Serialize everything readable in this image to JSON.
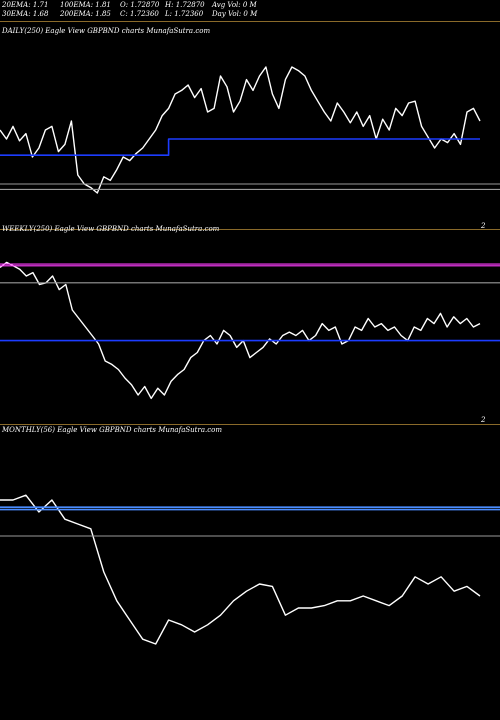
{
  "header": {
    "col1": [
      "20EMA: 1.71",
      "30EMA: 1.68"
    ],
    "col2": [
      "100EMA: 1.81",
      "200EMA: 1.85"
    ],
    "col3": [
      "O: 1.72870",
      "C: 1.72360"
    ],
    "col4": [
      "H: 1.72870",
      "L: 1.72360"
    ],
    "col5": [
      "Avg Vol: 0  M",
      "Day Vol: 0  M"
    ]
  },
  "panels": {
    "daily": {
      "label": "DAILY(250) Eagle  View  GBPBND charts MunafaSutra.com",
      "axis_mark": "2"
    },
    "weekly": {
      "label": "WEEKLY(250) Eagle  View  GBPBND charts MunafaSutra.com",
      "axis_mark": "2"
    },
    "monthly": {
      "label": "MONTHLY(56) Eagle  View  GBPBND charts MunafaSutra.com"
    }
  },
  "chart_data": [
    {
      "type": "line",
      "name": "daily",
      "ylim": [
        0,
        100
      ],
      "series": [
        {
          "role": "price",
          "color": "#ffffff",
          "values": [
            50,
            45,
            52,
            44,
            48,
            35,
            40,
            50,
            52,
            38,
            42,
            55,
            25,
            20,
            18,
            15,
            24,
            22,
            28,
            35,
            33,
            37,
            40,
            45,
            50,
            58,
            62,
            70,
            72,
            75,
            68,
            73,
            60,
            62,
            80,
            74,
            60,
            66,
            78,
            72,
            80,
            85,
            70,
            62,
            78,
            85,
            83,
            80,
            72,
            66,
            60,
            55,
            65,
            60,
            54,
            60,
            52,
            58,
            45,
            56,
            50,
            62,
            58,
            65,
            66,
            52,
            46,
            40,
            45,
            43,
            48,
            42,
            60,
            62,
            55
          ]
        },
        {
          "role": "average",
          "color": "#1c3cff",
          "values": [
            36,
            36,
            36,
            36,
            36,
            36,
            36,
            36,
            36,
            36,
            36,
            36,
            36,
            36,
            36,
            36,
            36,
            36,
            36,
            36,
            36,
            36,
            36,
            36,
            36,
            36,
            45,
            45,
            45,
            45,
            45,
            45,
            45,
            45,
            45,
            45,
            45,
            45,
            45,
            45,
            45,
            45,
            45,
            45,
            45,
            45,
            45,
            45,
            45,
            45,
            45,
            45,
            45,
            45,
            45,
            45,
            45,
            45,
            45,
            45,
            45,
            45,
            45,
            45,
            45,
            45,
            45,
            45,
            45,
            45,
            45,
            45,
            45,
            45,
            45
          ]
        },
        {
          "role": "level",
          "color": "#9a9a9a",
          "values": [
            20,
            20
          ]
        },
        {
          "role": "level",
          "color": "#9a9a9a",
          "values": [
            17,
            17
          ]
        }
      ]
    },
    {
      "type": "line",
      "name": "weekly",
      "ylim": [
        0,
        100
      ],
      "series": [
        {
          "role": "price",
          "color": "#ffffff",
          "values": [
            85,
            88,
            86,
            84,
            80,
            82,
            75,
            76,
            80,
            72,
            75,
            60,
            55,
            50,
            45,
            40,
            30,
            28,
            25,
            20,
            16,
            10,
            15,
            8,
            14,
            10,
            18,
            22,
            25,
            32,
            35,
            42,
            45,
            40,
            48,
            45,
            38,
            42,
            32,
            35,
            38,
            43,
            40,
            45,
            47,
            45,
            48,
            42,
            45,
            52,
            48,
            50,
            40,
            42,
            50,
            48,
            55,
            50,
            52,
            48,
            50,
            45,
            42,
            50,
            48,
            55,
            52,
            58,
            50,
            56,
            52,
            55,
            50,
            52
          ]
        },
        {
          "role": "average",
          "color": "#1c3cff",
          "values": [
            42,
            42
          ]
        },
        {
          "role": "level",
          "color": "#ff3dff",
          "values": [
            87,
            87
          ]
        },
        {
          "role": "level",
          "color": "#ff3dff",
          "values": [
            86,
            86
          ]
        },
        {
          "role": "level",
          "color": "#9a9a9a",
          "values": [
            76,
            76
          ]
        }
      ]
    },
    {
      "type": "line",
      "name": "monthly",
      "ylim": [
        0,
        100
      ],
      "series": [
        {
          "role": "price",
          "color": "#ffffff",
          "values": [
            80,
            80,
            82,
            75,
            80,
            72,
            70,
            68,
            50,
            38,
            30,
            22,
            20,
            30,
            28,
            25,
            28,
            32,
            38,
            42,
            45,
            44,
            32,
            35,
            35,
            36,
            38,
            38,
            40,
            38,
            36,
            40,
            48,
            45,
            48,
            42,
            44,
            40
          ]
        },
        {
          "role": "average",
          "color": "#4a8cff",
          "values": [
            77,
            77
          ]
        },
        {
          "role": "average",
          "color": "#4a8cff",
          "values": [
            76,
            76
          ]
        },
        {
          "role": "level",
          "color": "#9a9a9a",
          "values": [
            65,
            65
          ]
        }
      ]
    }
  ]
}
